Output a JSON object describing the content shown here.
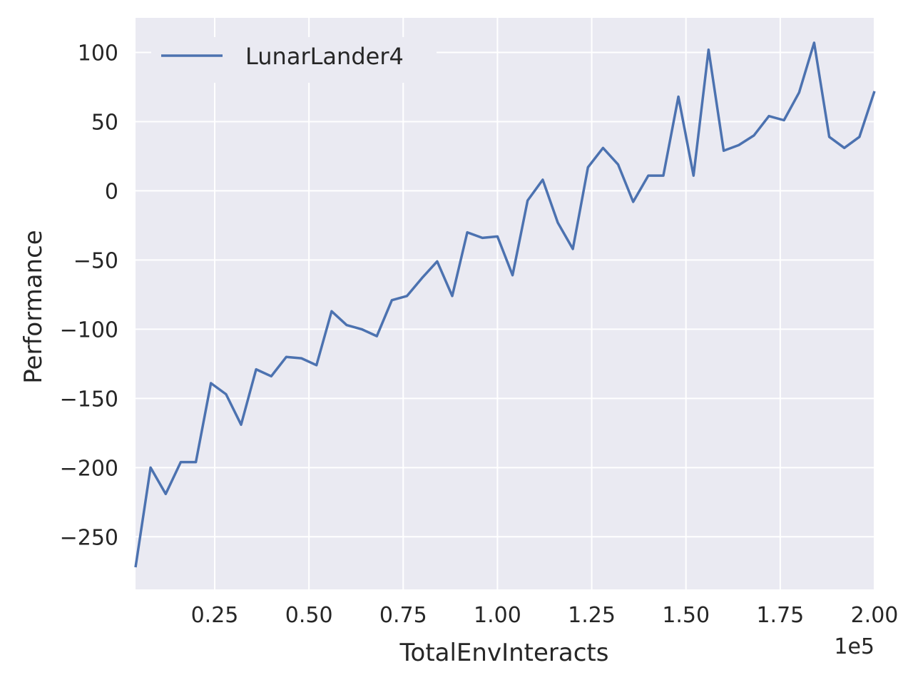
{
  "chart_data": {
    "type": "line",
    "xlabel": "TotalEnvInteracts",
    "ylabel": "Performance",
    "x_offset_label": "1e5",
    "x_ticks": [
      "0.25",
      "0.50",
      "0.75",
      "1.00",
      "1.25",
      "1.50",
      "1.75",
      "2.00"
    ],
    "x_tick_values": [
      0.25,
      0.5,
      0.75,
      1.0,
      1.25,
      1.5,
      1.75,
      2.0
    ],
    "y_ticks": [
      "100",
      "50",
      "0",
      "−50",
      "−100",
      "−150",
      "−200",
      "−250"
    ],
    "y_tick_values": [
      100,
      50,
      0,
      -50,
      -100,
      -150,
      -200,
      -250
    ],
    "xlim": [
      0.04,
      2.0
    ],
    "ylim": [
      -288,
      125
    ],
    "grid": true,
    "legend_position": "top-left",
    "series": [
      {
        "name": "LunarLander4",
        "color": "#4c72b0",
        "x": [
          0.04,
          0.08,
          0.12,
          0.16,
          0.2,
          0.24,
          0.28,
          0.32,
          0.36,
          0.4,
          0.44,
          0.48,
          0.52,
          0.56,
          0.6,
          0.64,
          0.68,
          0.72,
          0.76,
          0.8,
          0.84,
          0.88,
          0.92,
          0.96,
          1.0,
          1.04,
          1.08,
          1.12,
          1.16,
          1.2,
          1.24,
          1.28,
          1.32,
          1.36,
          1.4,
          1.44,
          1.48,
          1.52,
          1.56,
          1.6,
          1.64,
          1.68,
          1.72,
          1.76,
          1.8,
          1.84,
          1.88,
          1.92,
          1.96,
          2.0
        ],
        "values": [
          -272,
          -200,
          -219,
          -196,
          -196,
          -139,
          -147,
          -169,
          -129,
          -134,
          -120,
          -121,
          -126,
          -87,
          -97,
          -100,
          -105,
          -79,
          -76,
          -63,
          -51,
          -76,
          -30,
          -34,
          -33,
          -61,
          -7,
          8,
          -23,
          -42,
          17,
          31,
          19,
          -8,
          11,
          11,
          68,
          11,
          102,
          29,
          33,
          40,
          54,
          51,
          71,
          107,
          39,
          31,
          39,
          72
        ]
      }
    ]
  }
}
